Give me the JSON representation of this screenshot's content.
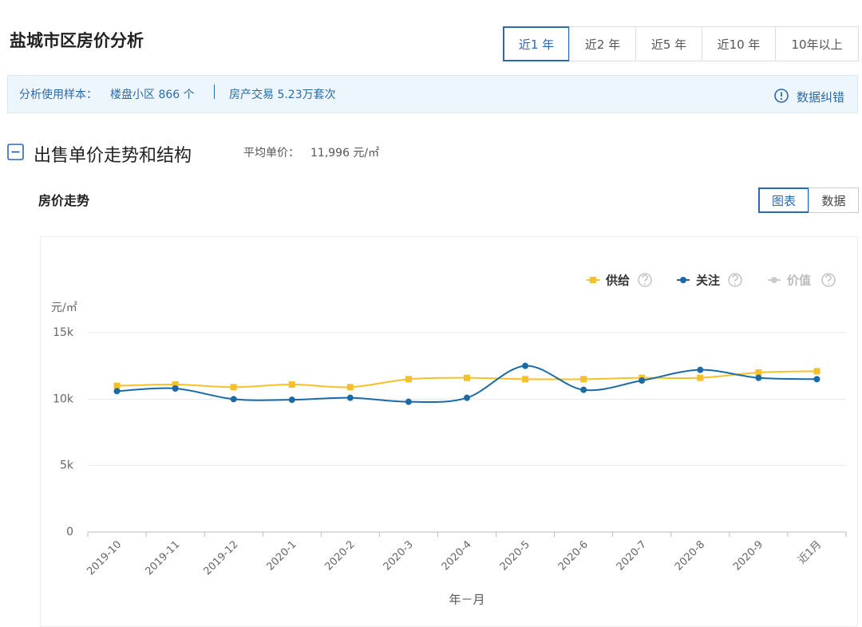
{
  "header": {
    "title": "盐城市区房价分析",
    "tabs": [
      "近1 年",
      "近2 年",
      "近5 年",
      "近10 年",
      "10年以上"
    ],
    "active_tab": 0
  },
  "info": {
    "label": "分析使用样本：",
    "communities": "楼盘小区 866 个",
    "transactions": "房产交易 5.23万套次",
    "report": "数据纠错"
  },
  "section": {
    "title": "出售单价走势和结构",
    "avg_label": "平均单价：",
    "avg_value": "11,996 元/㎡"
  },
  "subsection": {
    "title": "房价走势",
    "toggles": [
      "图表",
      "数据"
    ],
    "active_toggle": 0
  },
  "chart_data": {
    "type": "line",
    "y_label": "元/㎡",
    "x_label": "年－月",
    "categories": [
      "2019-10",
      "2019-11",
      "2019-12",
      "2020-1",
      "2020-2",
      "2020-3",
      "2020-4",
      "2020-5",
      "2020-6",
      "2020-7",
      "2020-8",
      "2020-9",
      "近1月"
    ],
    "series": [
      {
        "name": "供给",
        "color": "#f5c02c",
        "marker": "square",
        "values": [
          11000,
          11100,
          10900,
          11100,
          10900,
          11500,
          11600,
          11500,
          11500,
          11600,
          11600,
          12000,
          12100
        ]
      },
      {
        "name": "关注",
        "color": "#1a6aa8",
        "marker": "circle",
        "values": [
          10600,
          10800,
          10000,
          9950,
          10100,
          9800,
          10100,
          12500,
          10700,
          11400,
          12200,
          11600,
          11500
        ]
      },
      {
        "name": "价值",
        "color": "#cccccc",
        "marker": "circle",
        "hidden": true,
        "values": [
          null,
          null,
          null,
          null,
          null,
          null,
          null,
          null,
          null,
          null,
          null,
          null,
          null
        ]
      }
    ],
    "ylim": [
      0,
      15000
    ],
    "yticks": [
      0,
      {
        "value": 5000,
        "label": "5k"
      },
      {
        "value": 10000,
        "label": "10k"
      },
      {
        "value": 15000,
        "label": "15k"
      }
    ],
    "grid": true,
    "smooth": true,
    "legend": "top-right"
  }
}
